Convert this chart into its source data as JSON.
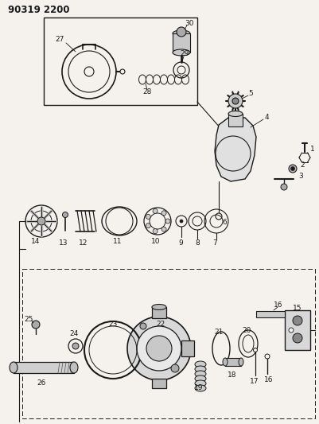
{
  "title": "90319 2200",
  "bg_color": "#f5f2ee",
  "fg_color": "#1a1a1a",
  "fig_width": 4.01,
  "fig_height": 5.33,
  "dpi": 100,
  "line_color": "#2a2a2a"
}
